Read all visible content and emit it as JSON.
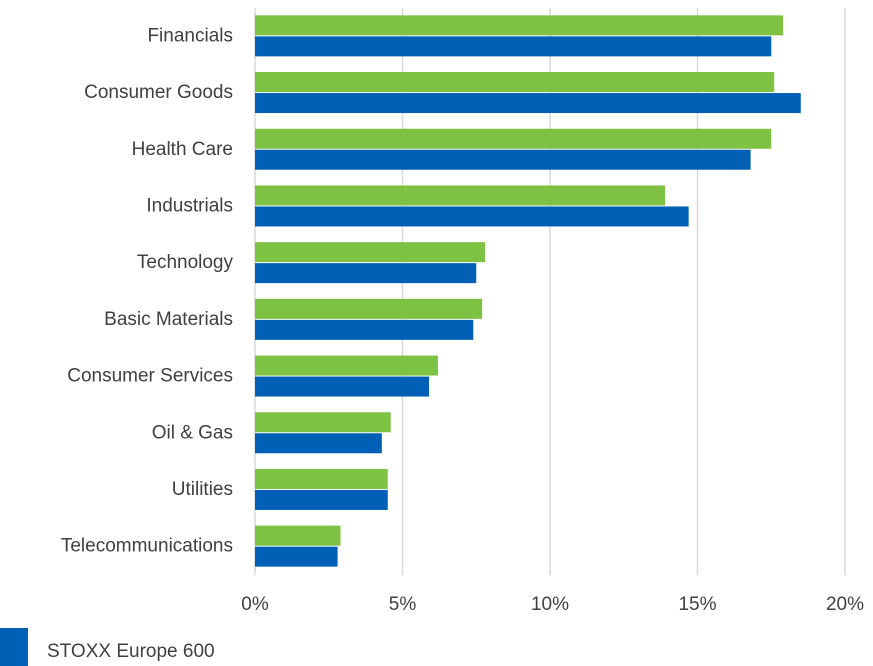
{
  "chart_data": {
    "type": "hbar",
    "categories": [
      "Financials",
      "Consumer Goods",
      "Health Care",
      "Industrials",
      "Technology",
      "Basic Materials",
      "Consumer Services",
      "Oil & Gas",
      "Utilities",
      "Telecommunications"
    ],
    "series": [
      {
        "color": "#7dc242",
        "values": [
          17.9,
          17.6,
          17.5,
          13.9,
          7.8,
          7.7,
          6.2,
          4.6,
          4.5,
          2.9
        ]
      },
      {
        "name": "STOXX Europe 600",
        "color": "#0060b6",
        "values": [
          17.5,
          18.5,
          16.8,
          14.7,
          7.5,
          7.4,
          5.9,
          4.3,
          4.5,
          2.8
        ]
      }
    ],
    "xlim": [
      0,
      20
    ],
    "xticks": [
      {
        "value": 0,
        "label": "0%"
      },
      {
        "value": 5,
        "label": "5%"
      },
      {
        "value": 10,
        "label": "10%"
      },
      {
        "value": 15,
        "label": "15%"
      },
      {
        "value": 20,
        "label": "20%"
      }
    ],
    "grid": true
  }
}
